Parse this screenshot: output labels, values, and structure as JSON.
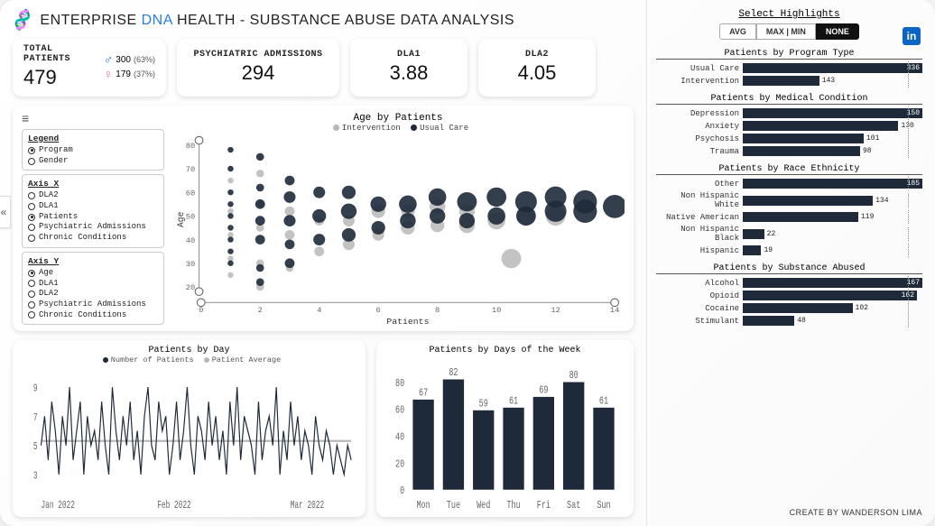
{
  "title": {
    "prefix": "ENTERPRISE ",
    "dna": "DNA",
    "rest": " HEALTH - SUBSTANCE ABUSE DATA ANALYSIS"
  },
  "colors": {
    "navy": "#1e2a3a",
    "grey": "#b9b9b9",
    "blue": "#2a7de1",
    "pink": "#e06aa0"
  },
  "kpi": {
    "total": {
      "label": "TOTAL PATIENTS",
      "value": "479",
      "male": {
        "n": "300",
        "pct": "(63%)"
      },
      "female": {
        "n": "179",
        "pct": "(37%)"
      }
    },
    "psych": {
      "label": "PSYCHIATRIC ADMISSIONS",
      "value": "294"
    },
    "dla1": {
      "label": "DLA1",
      "value": "3.88"
    },
    "dla2": {
      "label": "DLA2",
      "value": "4.05"
    }
  },
  "scatter": {
    "title": "Age by Patients",
    "legend": {
      "a": "Intervention",
      "b": "Usual Care"
    },
    "panel": {
      "legend_hd": "Legend",
      "legend_opts": [
        {
          "label": "Program",
          "on": true
        },
        {
          "label": "Gender",
          "on": false
        }
      ],
      "axisx_hd": "Axis X",
      "axisx_opts": [
        {
          "label": "DLA2",
          "on": false
        },
        {
          "label": "DLA1",
          "on": false
        },
        {
          "label": "Patients",
          "on": true
        },
        {
          "label": "Psychiatric Admissions",
          "on": false
        },
        {
          "label": "Chronic Conditions",
          "on": false
        }
      ],
      "axisy_hd": "Axis Y",
      "axisy_opts": [
        {
          "label": "Age",
          "on": true
        },
        {
          "label": "DLA1",
          "on": false
        },
        {
          "label": "DLA2",
          "on": false
        },
        {
          "label": "Psychiatric Admissions",
          "on": false
        },
        {
          "label": "Chronic Conditions",
          "on": false
        }
      ]
    },
    "y_axis_label": "Age",
    "x_axis_label": "Patients",
    "y_ticks": [
      20,
      30,
      40,
      50,
      60,
      70,
      80
    ],
    "x_ticks": [
      0,
      2,
      4,
      6,
      8,
      10,
      12,
      14
    ],
    "points_navy": [
      {
        "x": 1,
        "y": 30,
        "r": 3
      },
      {
        "x": 1,
        "y": 35,
        "r": 3
      },
      {
        "x": 1,
        "y": 40,
        "r": 3
      },
      {
        "x": 1,
        "y": 45,
        "r": 3
      },
      {
        "x": 1,
        "y": 50,
        "r": 3
      },
      {
        "x": 1,
        "y": 55,
        "r": 3
      },
      {
        "x": 1,
        "y": 60,
        "r": 3
      },
      {
        "x": 1,
        "y": 70,
        "r": 3
      },
      {
        "x": 1,
        "y": 78,
        "r": 3
      },
      {
        "x": 2,
        "y": 22,
        "r": 4
      },
      {
        "x": 2,
        "y": 28,
        "r": 4
      },
      {
        "x": 2,
        "y": 40,
        "r": 5
      },
      {
        "x": 2,
        "y": 48,
        "r": 5
      },
      {
        "x": 2,
        "y": 55,
        "r": 5
      },
      {
        "x": 2,
        "y": 62,
        "r": 4
      },
      {
        "x": 2,
        "y": 75,
        "r": 4
      },
      {
        "x": 3,
        "y": 30,
        "r": 5
      },
      {
        "x": 3,
        "y": 38,
        "r": 5
      },
      {
        "x": 3,
        "y": 48,
        "r": 6
      },
      {
        "x": 3,
        "y": 58,
        "r": 6
      },
      {
        "x": 3,
        "y": 65,
        "r": 5
      },
      {
        "x": 4,
        "y": 40,
        "r": 6
      },
      {
        "x": 4,
        "y": 50,
        "r": 7
      },
      {
        "x": 4,
        "y": 60,
        "r": 6
      },
      {
        "x": 5,
        "y": 42,
        "r": 7
      },
      {
        "x": 5,
        "y": 52,
        "r": 8
      },
      {
        "x": 5,
        "y": 60,
        "r": 7
      },
      {
        "x": 6,
        "y": 45,
        "r": 7
      },
      {
        "x": 6,
        "y": 55,
        "r": 8
      },
      {
        "x": 7,
        "y": 48,
        "r": 8
      },
      {
        "x": 7,
        "y": 55,
        "r": 9
      },
      {
        "x": 8,
        "y": 50,
        "r": 8
      },
      {
        "x": 8,
        "y": 58,
        "r": 9
      },
      {
        "x": 9,
        "y": 48,
        "r": 8
      },
      {
        "x": 9,
        "y": 56,
        "r": 10
      },
      {
        "x": 10,
        "y": 50,
        "r": 9
      },
      {
        "x": 10,
        "y": 58,
        "r": 10
      },
      {
        "x": 11,
        "y": 50,
        "r": 10
      },
      {
        "x": 11,
        "y": 56,
        "r": 11
      },
      {
        "x": 12,
        "y": 52,
        "r": 11
      },
      {
        "x": 12,
        "y": 58,
        "r": 11
      },
      {
        "x": 13,
        "y": 52,
        "r": 12
      },
      {
        "x": 13,
        "y": 56,
        "r": 12
      },
      {
        "x": 14,
        "y": 54,
        "r": 12
      }
    ],
    "points_grey": [
      {
        "x": 1,
        "y": 25,
        "r": 3
      },
      {
        "x": 1,
        "y": 32,
        "r": 3
      },
      {
        "x": 1,
        "y": 42,
        "r": 3
      },
      {
        "x": 1,
        "y": 52,
        "r": 3
      },
      {
        "x": 1,
        "y": 65,
        "r": 3
      },
      {
        "x": 2,
        "y": 20,
        "r": 4
      },
      {
        "x": 2,
        "y": 30,
        "r": 4
      },
      {
        "x": 2,
        "y": 45,
        "r": 4
      },
      {
        "x": 2,
        "y": 55,
        "r": 4
      },
      {
        "x": 2,
        "y": 68,
        "r": 4
      },
      {
        "x": 3,
        "y": 28,
        "r": 4
      },
      {
        "x": 3,
        "y": 42,
        "r": 5
      },
      {
        "x": 3,
        "y": 52,
        "r": 5
      },
      {
        "x": 4,
        "y": 35,
        "r": 5
      },
      {
        "x": 4,
        "y": 48,
        "r": 5
      },
      {
        "x": 5,
        "y": 38,
        "r": 6
      },
      {
        "x": 5,
        "y": 48,
        "r": 6
      },
      {
        "x": 6,
        "y": 42,
        "r": 6
      },
      {
        "x": 6,
        "y": 52,
        "r": 7
      },
      {
        "x": 7,
        "y": 45,
        "r": 7
      },
      {
        "x": 7,
        "y": 52,
        "r": 7
      },
      {
        "x": 8,
        "y": 46,
        "r": 7
      },
      {
        "x": 8,
        "y": 54,
        "r": 8
      },
      {
        "x": 9,
        "y": 46,
        "r": 8
      },
      {
        "x": 9,
        "y": 52,
        "r": 8
      },
      {
        "x": 10,
        "y": 48,
        "r": 9
      },
      {
        "x": 10.5,
        "y": 32,
        "r": 10
      },
      {
        "x": 11,
        "y": 50,
        "r": 9
      },
      {
        "x": 12,
        "y": 50,
        "r": 10
      }
    ]
  },
  "line": {
    "title": "Patients by Day",
    "legend": {
      "a": "Number of Patients",
      "b": "Patient Average"
    },
    "y_ticks": [
      3,
      5,
      7,
      9
    ],
    "x_ticks": [
      "Jan 2022",
      "Feb 2022",
      "Mar 2022"
    ],
    "avg": 5.3,
    "values": [
      5,
      7,
      4,
      8,
      6,
      3,
      7,
      5,
      9,
      4,
      6,
      8,
      3,
      7,
      5,
      6,
      4,
      8,
      5,
      3,
      9,
      6,
      4,
      7,
      5,
      8,
      4,
      6,
      3,
      7,
      9,
      5,
      4,
      8,
      6,
      7,
      3,
      5,
      8,
      4,
      6,
      9,
      5,
      3,
      7,
      6,
      4,
      8,
      5,
      7,
      4,
      6,
      3,
      8,
      5,
      9,
      4,
      7,
      6,
      5,
      3,
      8,
      4,
      6,
      7,
      5,
      9,
      3,
      6,
      4,
      8,
      5,
      7,
      4,
      6,
      5,
      3,
      7,
      5,
      4,
      6,
      5,
      3,
      5,
      4,
      3,
      5,
      4
    ]
  },
  "weekday": {
    "title": "Patients by Days of the Week",
    "y_ticks": [
      0,
      20,
      40,
      60,
      80
    ],
    "days": [
      "Mon",
      "Tue",
      "Wed",
      "Thu",
      "Fri",
      "Sat",
      "Sun"
    ],
    "values": [
      67,
      82,
      59,
      61,
      69,
      80,
      61
    ]
  },
  "side": {
    "highlight_title": "Select Highlights",
    "tabs": [
      {
        "label": "AVG",
        "active": false
      },
      {
        "label": "MAX | MIN",
        "active": false
      },
      {
        "label": "NONE",
        "active": true
      }
    ],
    "charts": [
      {
        "title": "Patients by Program Type",
        "max": 336,
        "rows": [
          {
            "label": "Usual Care",
            "val": 336
          },
          {
            "label": "Intervention",
            "val": 143
          }
        ]
      },
      {
        "title": "Patients by Medical Condition",
        "max": 150,
        "rows": [
          {
            "label": "Depression",
            "val": 150
          },
          {
            "label": "Anxiety",
            "val": 130
          },
          {
            "label": "Psychosis",
            "val": 101
          },
          {
            "label": "Trauma",
            "val": 98
          }
        ]
      },
      {
        "title": "Patients by Race Ethnicity",
        "max": 185,
        "rows": [
          {
            "label": "Other",
            "val": 185
          },
          {
            "label": "Non Hispanic White",
            "val": 134
          },
          {
            "label": "Native American",
            "val": 119
          },
          {
            "label": "Non Hispanic Black",
            "val": 22
          },
          {
            "label": "Hispanic",
            "val": 19
          }
        ]
      },
      {
        "title": "Patients by Substance Abused",
        "max": 167,
        "rows": [
          {
            "label": "Alcohol",
            "val": 167
          },
          {
            "label": "Opioid",
            "val": 162
          },
          {
            "label": "Cocaine",
            "val": 102
          },
          {
            "label": "Stimulant",
            "val": 48
          }
        ]
      }
    ],
    "credit": "CREATE BY WANDERSON LIMA"
  }
}
